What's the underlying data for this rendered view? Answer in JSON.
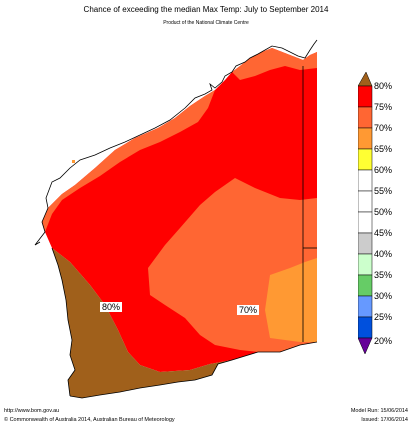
{
  "header": {
    "title": "Chance of exceeding the median Max Temp: July to September 2014",
    "subtitle": "Product of the National Climate Centre"
  },
  "map": {
    "region_labels": [
      "80%",
      "70%"
    ],
    "zones": [
      {
        "level": "80%+",
        "color": "#ff0000"
      },
      {
        "level": "75-80%",
        "color": "#ff6633"
      },
      {
        "level": "70-75%",
        "color": "#ff9933"
      },
      {
        "level": "80% (southwest)",
        "color": "#a0601b"
      }
    ]
  },
  "legend": {
    "labels": [
      "80%",
      "75%",
      "70%",
      "65%",
      "60%",
      "55%",
      "50%",
      "45%",
      "40%",
      "35%",
      "30%",
      "25%",
      "20%"
    ],
    "colors": [
      "#a0601b",
      "#ff0000",
      "#ff6633",
      "#ff9933",
      "#ffff33",
      "#ffffff",
      "#ffffff",
      "#ffffff",
      "#cccccc",
      "#ccffcc",
      "#66cc66",
      "#6699ff",
      "#0050dd",
      "#660099"
    ]
  },
  "footer": {
    "url": "http://www.bom.gov.au",
    "copyright": "©  Commonwealth of Australia 2014, Australian Bureau of Meteorology",
    "model_run": "Model Run: 15/06/2014",
    "issued": "Issued: 17/06/2014"
  }
}
